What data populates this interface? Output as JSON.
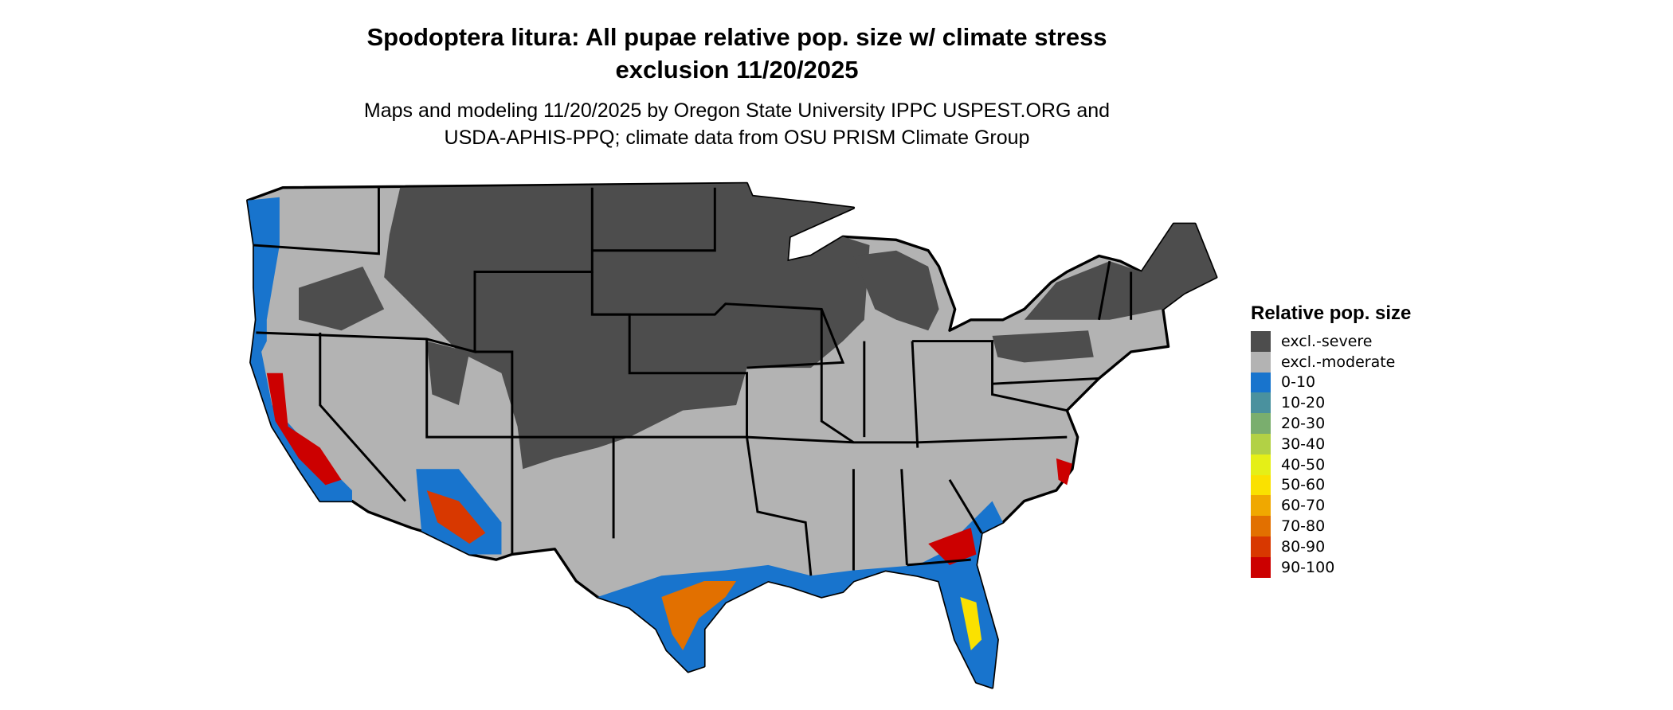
{
  "title": {
    "line1": "Spodoptera litura: All pupae relative pop. size w/ climate stress",
    "line2": "exclusion 11/20/2025"
  },
  "subtitle": {
    "line1": "Maps and modeling 11/20/2025 by Oregon State University IPPC USPEST.ORG and",
    "line2": "USDA-APHIS-PPQ; climate data from OSU PRISM Climate Group"
  },
  "legend": {
    "title": "Relative pop. size",
    "items": [
      {
        "label": "excl.-severe",
        "color": "#4d4d4d"
      },
      {
        "label": "excl.-moderate",
        "color": "#b3b3b3"
      },
      {
        "label": "0-10",
        "color": "#1874cd"
      },
      {
        "label": "10-20",
        "color": "#4a919e"
      },
      {
        "label": "20-30",
        "color": "#7aae6e"
      },
      {
        "label": "30-40",
        "color": "#b2d145"
      },
      {
        "label": "40-50",
        "color": "#e5ef17"
      },
      {
        "label": "50-60",
        "color": "#fae100"
      },
      {
        "label": "60-70",
        "color": "#f0a800"
      },
      {
        "label": "70-80",
        "color": "#e27000"
      },
      {
        "label": "80-90",
        "color": "#d83800"
      },
      {
        "label": "90-100",
        "color": "#cc0000"
      }
    ]
  }
}
